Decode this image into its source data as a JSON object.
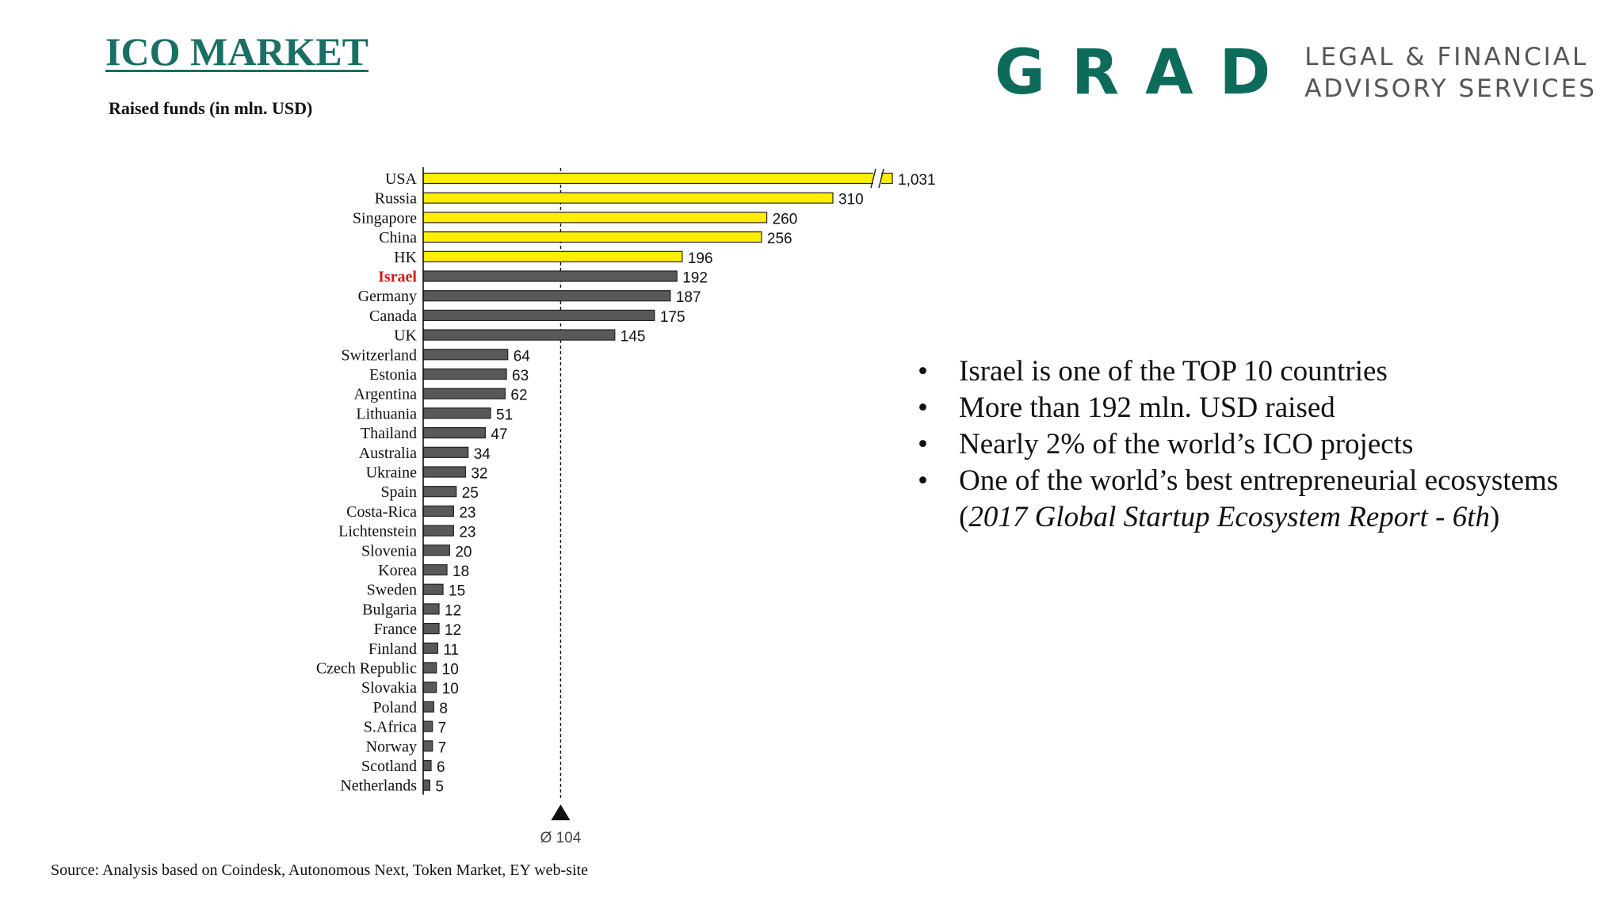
{
  "header": {
    "title": "ICO MARKET",
    "subtitle": "Raised funds (in mln. USD)"
  },
  "logo": {
    "word": "GRAD",
    "tagline_line1": "LEGAL & FINANCIAL",
    "tagline_line2": "ADVISORY SERVICES"
  },
  "bullets": [
    "Israel is one of the TOP 10 countries",
    "More than 192 mln. USD raised",
    "Nearly 2% of the world’s ICO projects",
    "One of the world’s best entrepreneurial ecosystems"
  ],
  "bullet_note": {
    "open": "(",
    "italic": "2017 Global Startup Ecosystem Report - 6th",
    "close": ")"
  },
  "source": "Source: Analysis based on Coindesk, Autonomous Next, Token Market, EY web-site",
  "colors": {
    "highlight_bar": "#ffee00",
    "default_bar": "#595959",
    "highlight_label": "#d01c1c",
    "brand": "#1a6e63"
  },
  "chart_data": {
    "type": "bar",
    "orientation": "horizontal",
    "title": "Raised funds (in mln. USD)",
    "xlabel": "",
    "ylabel": "",
    "xlim": [
      0,
      340
    ],
    "axis_break_on": "USA",
    "highlighted_label": "Israel",
    "categories": [
      "USA",
      "Russia",
      "Singapore",
      "China",
      "HK",
      "Israel",
      "Germany",
      "Canada",
      "UK",
      "Switzerland",
      "Estonia",
      "Argentina",
      "Lithuania",
      "Thailand",
      "Australia",
      "Ukraine",
      "Spain",
      "Costa-Rica",
      "Lichtenstein",
      "Slovenia",
      "Korea",
      "Sweden",
      "Bulgaria",
      "France",
      "Finland",
      "Czech Republic",
      "Slovakia",
      "Poland",
      "S.Africa",
      "Norway",
      "Scotland",
      "Netherlands"
    ],
    "values": [
      1031,
      310,
      260,
      256,
      196,
      192,
      187,
      175,
      145,
      64,
      63,
      62,
      51,
      47,
      34,
      32,
      25,
      23,
      23,
      20,
      18,
      15,
      12,
      12,
      11,
      10,
      10,
      8,
      7,
      7,
      6,
      5
    ],
    "value_labels": [
      "1,031",
      "310",
      "260",
      "256",
      "196",
      "192",
      "187",
      "175",
      "145",
      "64",
      "63",
      "62",
      "51",
      "47",
      "34",
      "32",
      "25",
      "23",
      "23",
      "20",
      "18",
      "15",
      "12",
      "12",
      "11",
      "10",
      "10",
      "8",
      "7",
      "7",
      "6",
      "5"
    ],
    "highlight_top": 5,
    "average": 104,
    "average_label": "Ø 104"
  }
}
